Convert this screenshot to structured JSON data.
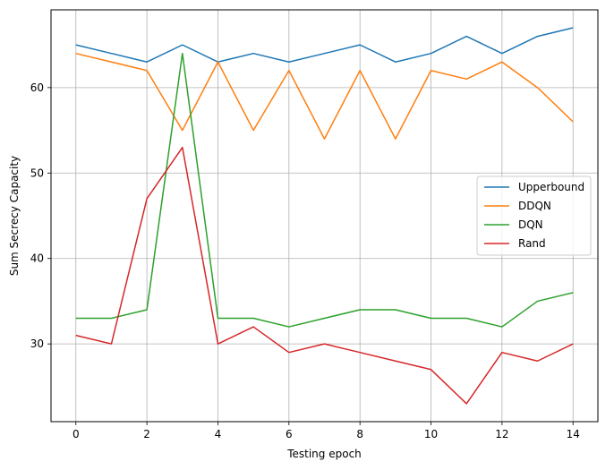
{
  "chart_data": {
    "type": "line",
    "title": "",
    "xlabel": "Testing epoch",
    "ylabel": "Sum Secrecy Capacity",
    "x": [
      0,
      1,
      2,
      3,
      4,
      5,
      6,
      7,
      8,
      9,
      10,
      11,
      12,
      13,
      14
    ],
    "xlim": [
      -0.7,
      14.7
    ],
    "ylim": [
      20.9,
      69.1
    ],
    "xticks": [
      0,
      2,
      4,
      6,
      8,
      10,
      12,
      14
    ],
    "yticks": [
      30,
      40,
      50,
      60
    ],
    "grid": true,
    "legend_position": "center-right",
    "series": [
      {
        "name": "Upperbound",
        "color": "#1f77b4",
        "values": [
          65,
          64,
          63,
          65,
          63,
          64,
          63,
          64,
          65,
          63,
          64,
          66,
          64,
          66,
          67
        ]
      },
      {
        "name": "DDQN",
        "color": "#ff7f0e",
        "values": [
          64,
          63,
          62,
          55,
          63,
          55,
          62,
          54,
          62,
          54,
          62,
          61,
          63,
          60,
          56
        ]
      },
      {
        "name": "DQN",
        "color": "#2ca02c",
        "values": [
          33,
          33,
          34,
          64,
          33,
          33,
          32,
          33,
          34,
          34,
          33,
          33,
          32,
          35,
          36
        ]
      },
      {
        "name": "Rand",
        "color": "#d62728",
        "values": [
          31,
          30,
          47,
          53,
          30,
          32,
          29,
          30,
          29,
          28,
          27,
          23,
          29,
          28,
          30
        ]
      }
    ]
  }
}
